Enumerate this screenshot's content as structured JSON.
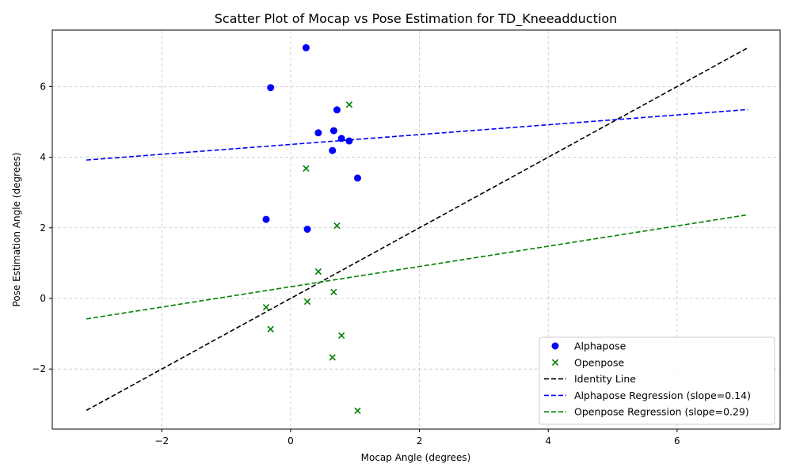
{
  "chart_data": {
    "type": "scatter",
    "title": "Scatter Plot of Mocap vs Pose Estimation for TD_Kneeadduction",
    "xlabel": "Mocap Angle (degrees)",
    "ylabel": "Pose Estimation Angle (degrees)",
    "xlim": [
      -3.7,
      7.6
    ],
    "ylim": [
      -3.7,
      7.6
    ],
    "xticks": [
      -2,
      0,
      2,
      4,
      6
    ],
    "yticks": [
      -2,
      0,
      2,
      4,
      6
    ],
    "xtick_labels": [
      "−2",
      "0",
      "2",
      "4",
      "6"
    ],
    "ytick_labels": [
      "−2",
      "0",
      "2",
      "4",
      "6"
    ],
    "grid": true,
    "legend_position": "lower-right",
    "series": [
      {
        "name": "Alphapose",
        "kind": "points",
        "marker": "circle",
        "color": "#0000ff",
        "points": [
          [
            0.24,
            7.1
          ],
          [
            -0.31,
            5.97
          ],
          [
            0.72,
            5.34
          ],
          [
            0.43,
            4.69
          ],
          [
            0.67,
            4.75
          ],
          [
            0.79,
            4.53
          ],
          [
            0.91,
            4.46
          ],
          [
            0.65,
            4.19
          ],
          [
            1.04,
            3.41
          ],
          [
            -0.38,
            2.24
          ],
          [
            0.26,
            1.96
          ]
        ]
      },
      {
        "name": "Openpose",
        "kind": "points",
        "marker": "x",
        "color": "#008000",
        "points": [
          [
            0.91,
            5.49
          ],
          [
            0.24,
            3.68
          ],
          [
            0.72,
            2.06
          ],
          [
            0.43,
            0.76
          ],
          [
            0.67,
            0.18
          ],
          [
            0.26,
            -0.09
          ],
          [
            -0.38,
            -0.25
          ],
          [
            -0.31,
            -0.87
          ],
          [
            0.79,
            -1.05
          ],
          [
            0.65,
            -1.67
          ],
          [
            1.04,
            -3.18
          ]
        ]
      },
      {
        "name": "Identity Line",
        "kind": "line",
        "dash": true,
        "color": "#000000",
        "start": [
          -3.17,
          -3.17
        ],
        "end": [
          7.1,
          7.1
        ]
      },
      {
        "name": "Alphapose Regression (slope=0.14)",
        "kind": "line",
        "dash": true,
        "color": "#0000ff",
        "start": [
          -3.17,
          3.92
        ],
        "end": [
          7.1,
          5.35
        ]
      },
      {
        "name": "Openpose Regression (slope=0.29)",
        "kind": "line",
        "dash": true,
        "color": "#008000",
        "start": [
          -3.17,
          -0.58
        ],
        "end": [
          7.1,
          2.37
        ]
      }
    ]
  }
}
